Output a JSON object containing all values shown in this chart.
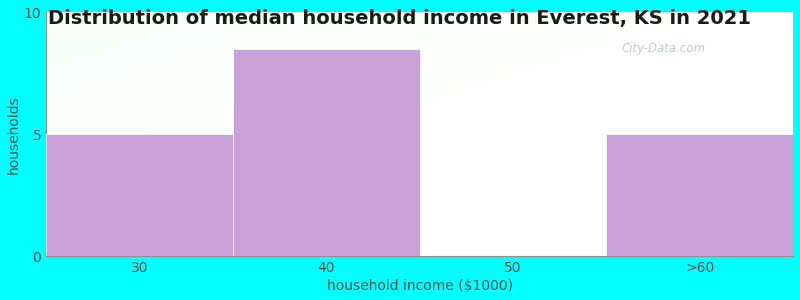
{
  "title": "Distribution of median household income in Everest, KS in 2021",
  "subtitle_color": "#00b0b0",
  "background_color": "#00ffff",
  "bar_color": "#c8a0d8",
  "categories": [
    "30",
    "40",
    "50",
    ">60"
  ],
  "values": [
    5,
    8.5,
    0,
    5
  ],
  "xlabel": "household income ($1000)",
  "ylabel": "households",
  "ylim": [
    0,
    10
  ],
  "yticks": [
    0,
    5,
    10
  ],
  "title_fontsize": 14,
  "subtitle_fontsize": 11,
  "axis_label_fontsize": 10,
  "watermark": "City-Data.com"
}
